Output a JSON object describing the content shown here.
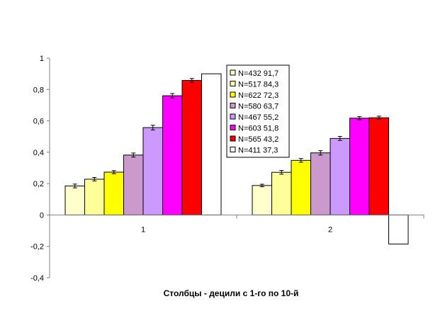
{
  "chart_data": {
    "type": "bar",
    "categories": [
      "1",
      "2"
    ],
    "xlabel": "Столбцы - децили с 1-го по 10-й",
    "ylabel": "",
    "ylim": [
      -0.4,
      1
    ],
    "yticks": [
      "1",
      "0,8",
      "0,6",
      "0,4",
      "0,2",
      "0",
      "-0,2",
      "-0,4"
    ],
    "ytick_values": [
      1,
      0.8,
      0.6,
      0.4,
      0.2,
      0,
      -0.2,
      -0.4
    ],
    "grid": false,
    "legend_position": "top-right",
    "series": [
      {
        "name": "N=432 91,7",
        "color": "#ffffcc",
        "values": [
          0.185,
          0.188
        ],
        "errors": [
          0.012,
          0.008
        ],
        "has_error": true
      },
      {
        "name": "N=517 84,3",
        "color": "#ffff99",
        "values": [
          0.228,
          0.272
        ],
        "errors": [
          0.011,
          0.012
        ],
        "has_error": true
      },
      {
        "name": "N=622 72,3",
        "color": "#ffff00",
        "values": [
          0.273,
          0.348
        ],
        "errors": [
          0.01,
          0.012
        ],
        "has_error": true
      },
      {
        "name": "N=580 63,7",
        "color": "#cc99cc",
        "values": [
          0.382,
          0.396
        ],
        "errors": [
          0.013,
          0.014
        ],
        "has_error": true
      },
      {
        "name": "N=467 55,2",
        "color": "#cc99ff",
        "values": [
          0.557,
          0.488
        ],
        "errors": [
          0.015,
          0.013
        ],
        "has_error": true
      },
      {
        "name": "N=603 51,8",
        "color": "#ff00ff",
        "values": [
          0.76,
          0.617
        ],
        "errors": [
          0.014,
          0.01
        ],
        "has_error": true
      },
      {
        "name": "N=565 43,2",
        "color": "#ff0000",
        "values": [
          0.858,
          0.62
        ],
        "errors": [
          0.012,
          0.01
        ],
        "has_error": true
      },
      {
        "name": "N=411 37,3",
        "color": "#ffffff",
        "values": [
          0.9,
          -0.185
        ],
        "errors": [
          0,
          0
        ],
        "has_error": false
      }
    ]
  }
}
